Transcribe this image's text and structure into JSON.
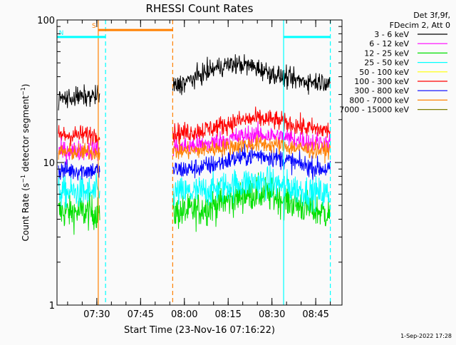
{
  "chart_data": {
    "type": "line",
    "title": "RHESSI Count Rates",
    "xlabel": "Start Time (23-Nov-16 07:16:22)",
    "ylabel_main": "Count Rate (s",
    "ylabel_sup": "−1",
    "ylabel_mid": " detector segment",
    "ylabel_end": ")",
    "y_scale": "log",
    "ylim": [
      1,
      100
    ],
    "y_ticks": [
      {
        "value": 1,
        "label": "1"
      },
      {
        "value": 10,
        "label": "10"
      },
      {
        "value": 100,
        "label": "100"
      }
    ],
    "xlim": [
      "07:16:22",
      "08:54:00"
    ],
    "x_ticks": [
      {
        "time": "07:30",
        "label": "07:30"
      },
      {
        "time": "07:45",
        "label": "07:45"
      },
      {
        "time": "08:00",
        "label": "08:00"
      },
      {
        "time": "08:15",
        "label": "08:15"
      },
      {
        "time": "08:30",
        "label": "08:30"
      },
      {
        "time": "08:45",
        "label": "08:45"
      }
    ],
    "data_gap": [
      "07:31",
      "07:56"
    ],
    "data_end": "08:50",
    "legend_header": [
      "Det 3f,9f,",
      "FDecim 2, Att 0"
    ],
    "series": [
      {
        "name": "3 - 6 keV",
        "color": "#000000",
        "level_start": 28,
        "level_end": 37,
        "flare_peak": 52,
        "flare_time": "08:17",
        "noise": 0.07
      },
      {
        "name": "6 - 12 keV",
        "color": "#ff00ff",
        "level_start": 12,
        "level_end": 13.5,
        "flare_peak": 16,
        "flare_time": "08:25",
        "noise": 0.07
      },
      {
        "name": "12 - 25 keV",
        "color": "#00e000",
        "level_start": 4.5,
        "level_end": 4.3,
        "flare_peak": 6.2,
        "flare_time": "08:25",
        "noise": 0.12
      },
      {
        "name": "25 - 50 keV",
        "color": "#00ffff",
        "level_start": 6.2,
        "level_end": 5.9,
        "flare_peak": 7.5,
        "flare_time": "08:25",
        "noise": 0.11
      },
      {
        "name": "50 - 100 keV",
        "color": "#ffff00",
        "level_start": 12,
        "level_end": 12,
        "flare_peak": 13,
        "flare_time": "08:25",
        "noise": 0.05
      },
      {
        "name": "100 - 300 keV",
        "color": "#ff0000",
        "level_start": 15.5,
        "level_end": 16.5,
        "flare_peak": 20.5,
        "flare_time": "08:25",
        "noise": 0.07
      },
      {
        "name": "300 - 800 keV",
        "color": "#0000ff",
        "level_start": 8.8,
        "level_end": 8.8,
        "flare_peak": 11.2,
        "flare_time": "08:25",
        "noise": 0.07
      },
      {
        "name": "800 - 7000 keV",
        "color": "#ff8000",
        "level_start": 11.8,
        "level_end": 12,
        "flare_peak": 13.5,
        "flare_time": "08:25",
        "noise": 0.06
      },
      {
        "name": "7000 - 15000 keV",
        "color": "#808000",
        "level_start": null,
        "level_end": null,
        "flare_peak": null,
        "flare_time": null,
        "noise": 0
      }
    ],
    "markers": [
      {
        "type": "line",
        "time": "07:30:30",
        "color": "#ff8000",
        "style": "solid"
      },
      {
        "type": "line",
        "time": "07:56",
        "color": "#ff8000",
        "style": "dashed"
      },
      {
        "type": "line",
        "time": "07:33",
        "color": "#00ffff",
        "style": "dashed"
      },
      {
        "type": "line",
        "time": "08:34",
        "color": "#00ffff",
        "style": "solid"
      },
      {
        "type": "line",
        "time": "08:50",
        "color": "#00ffff",
        "style": "dashed"
      },
      {
        "type": "bar",
        "from": "07:30:30",
        "to": "07:56",
        "value": 85,
        "color": "#ff8000",
        "label": "S"
      },
      {
        "type": "bar",
        "from": "07:16:22",
        "to": "07:33",
        "value": 76,
        "color": "#00ffff",
        "label": "N"
      },
      {
        "type": "bar",
        "from": "08:34",
        "to": "08:50",
        "value": 76,
        "color": "#00ffff",
        "label": ""
      }
    ],
    "grid": false,
    "legend_position": "top-right outside"
  },
  "footer_date": "1-Sep-2022 17:28"
}
